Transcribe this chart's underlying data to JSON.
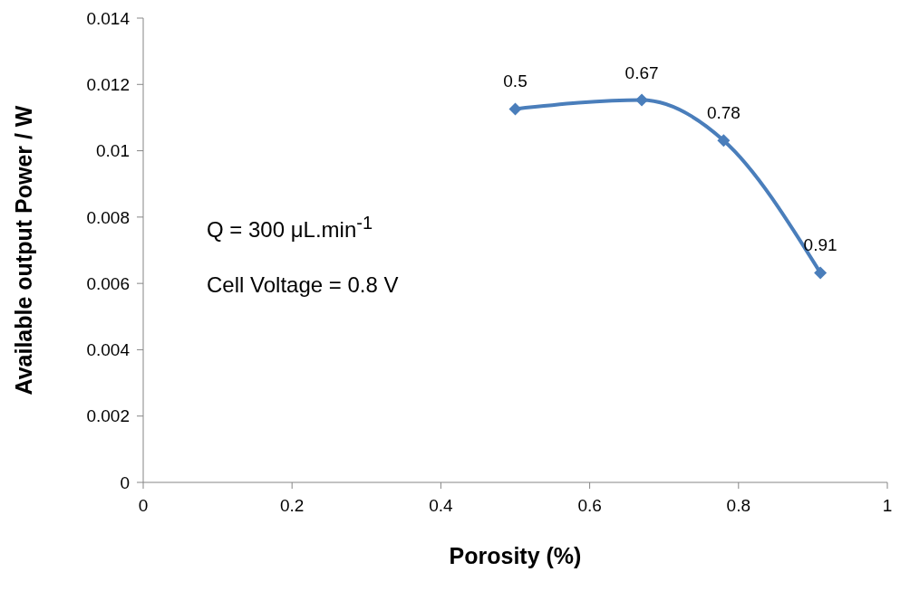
{
  "chart_data": {
    "type": "line",
    "xlabel": "Porosity (%)",
    "ylabel": "Available output Power / W",
    "x": [
      0.5,
      0.67,
      0.78,
      0.91
    ],
    "series": [
      {
        "color": "#4a7ebb",
        "values": [
          0.01126,
          0.01153,
          0.01031,
          0.00632
        ]
      }
    ],
    "xlim": [
      0,
      1
    ],
    "xticks": [
      0,
      0.2,
      0.4,
      0.6,
      0.8,
      1
    ],
    "ylim": [
      0,
      0.014
    ],
    "yticks": [
      0,
      0.002,
      0.004,
      0.006,
      0.008,
      0.01,
      0.012,
      0.014
    ],
    "grid": false,
    "marker": "diamond",
    "line_style": "solid",
    "annotations": [
      "Q = 300 μL.min$^{-1}$",
      "Cell Voltage = 0.8 V",
      {
        "text": "0.5",
        "x": 0.5,
        "y": 0.01126
      },
      {
        "text": "0.67",
        "x": 0.67,
        "y": 0.01153
      },
      {
        "text": "0.78",
        "x": 0.78,
        "y": 0.01031
      },
      {
        "text": "0.91",
        "x": 0.91,
        "y": 0.00632
      }
    ]
  }
}
